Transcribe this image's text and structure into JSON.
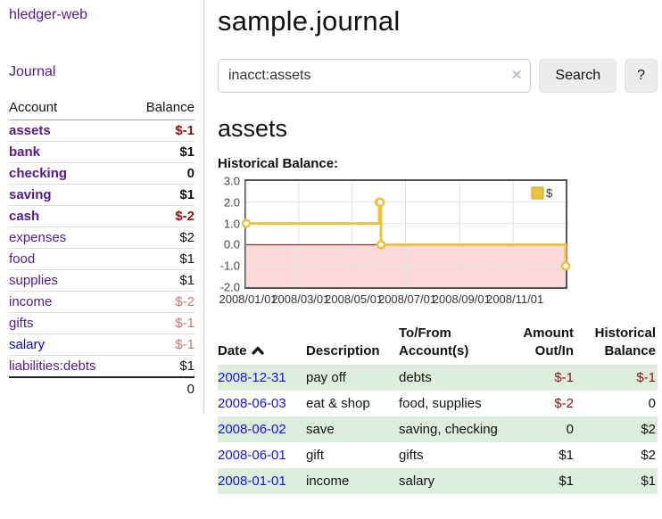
{
  "app": {
    "brand": "hledger-web",
    "nav": {
      "journal": "Journal"
    }
  },
  "sidebar": {
    "header": {
      "account": "Account",
      "balance": "Balance"
    },
    "accounts": [
      {
        "name": "assets",
        "indent": 0,
        "bold": true,
        "link": "purple",
        "balance": "$-1",
        "tone": "neg-strong"
      },
      {
        "name": "bank",
        "indent": 1,
        "bold": true,
        "link": "purple",
        "balance": "$1",
        "tone": "pos"
      },
      {
        "name": "checking",
        "indent": 2,
        "bold": true,
        "link": "purple",
        "balance": "0",
        "tone": "pos"
      },
      {
        "name": "saving",
        "indent": 2,
        "bold": true,
        "link": "purple",
        "balance": "$1",
        "tone": "pos"
      },
      {
        "name": "cash",
        "indent": 1,
        "bold": true,
        "link": "purple",
        "balance": "$-2",
        "tone": "neg-strong"
      },
      {
        "name": "expenses",
        "indent": 0,
        "bold": false,
        "link": "purple",
        "balance": "$2",
        "tone": "pos"
      },
      {
        "name": "food",
        "indent": 1,
        "bold": false,
        "link": "purple",
        "balance": "$1",
        "tone": "pos"
      },
      {
        "name": "supplies",
        "indent": 1,
        "bold": false,
        "link": "purple",
        "balance": "$1",
        "tone": "pos"
      },
      {
        "name": "income",
        "indent": 0,
        "bold": false,
        "link": "purple",
        "balance": "$-2",
        "tone": "neg"
      },
      {
        "name": "gifts",
        "indent": 1,
        "bold": false,
        "link": "purple",
        "balance": "$-1",
        "tone": "neg"
      },
      {
        "name": "salary",
        "indent": 1,
        "bold": false,
        "link": "blue",
        "balance": "$-1",
        "tone": "neg"
      },
      {
        "name": "liabilities:debts",
        "indent": 0,
        "bold": false,
        "link": "purple",
        "balance": "$1",
        "tone": "pos"
      }
    ],
    "total": "0"
  },
  "header": {
    "title": "sample.journal"
  },
  "search": {
    "value": "inacct:assets",
    "clear_icon": "✕",
    "button": "Search",
    "help_button": "?"
  },
  "account_page": {
    "heading": "assets",
    "chart_title": "Historical Balance:"
  },
  "chart_data": {
    "type": "line",
    "step": true,
    "series": [
      {
        "name": "$",
        "color": "#edc240",
        "points": [
          [
            "2008-01-01",
            1
          ],
          [
            "2008-06-01",
            2
          ],
          [
            "2008-06-02",
            2
          ],
          [
            "2008-06-03",
            0
          ],
          [
            "2008-12-31",
            -1
          ]
        ]
      }
    ],
    "x_range": [
      "2008-01-01",
      "2008-12-31"
    ],
    "ylim": [
      -2,
      3
    ],
    "y_ticks": [
      "3.0",
      "2.0",
      "1.0",
      "0.0",
      "-1.0",
      "-2.0"
    ],
    "x_ticks": [
      "2008/01/01",
      "2008/03/01",
      "2008/05/01",
      "2008/07/01",
      "2008/09/01",
      "2008/11/01"
    ],
    "legend": {
      "label": "$",
      "position": "top-right"
    },
    "grid": true,
    "colors": {
      "negative_fill": "#fbd9d9",
      "zero_line": "#8b0000",
      "grid_line": "#e2e2e2",
      "border": "#545454",
      "legend_swatch_border": "#c9a32f"
    }
  },
  "register": {
    "columns": [
      "Date",
      "Description",
      [
        "To/From",
        "Account(s)"
      ],
      [
        "Amount",
        "Out/In"
      ],
      [
        "Historical",
        "Balance"
      ]
    ],
    "sort_icon": "chevron-up",
    "rows": [
      {
        "date": "2008-12-31",
        "description": "pay off",
        "accounts": "debts",
        "amount": "$-1",
        "amount_tone": "neg-table",
        "balance": "$-1",
        "balance_tone": "neg-table",
        "green": true
      },
      {
        "date": "2008-06-03",
        "description": "eat & shop",
        "accounts": "food, supplies",
        "amount": "$-2",
        "amount_tone": "neg-table",
        "balance": "0",
        "balance_tone": "pos",
        "green": false
      },
      {
        "date": "2008-06-02",
        "description": "save",
        "accounts": "saving, checking",
        "amount": "0",
        "amount_tone": "pos",
        "balance": "$2",
        "balance_tone": "pos",
        "green": true
      },
      {
        "date": "2008-06-01",
        "description": "gift",
        "accounts": "gifts",
        "amount": "$1",
        "amount_tone": "pos",
        "balance": "$2",
        "balance_tone": "pos",
        "green": false
      },
      {
        "date": "2008-01-01",
        "description": "income",
        "accounts": "salary",
        "amount": "$1",
        "amount_tone": "pos",
        "balance": "$1",
        "balance_tone": "pos",
        "green": true
      }
    ]
  }
}
